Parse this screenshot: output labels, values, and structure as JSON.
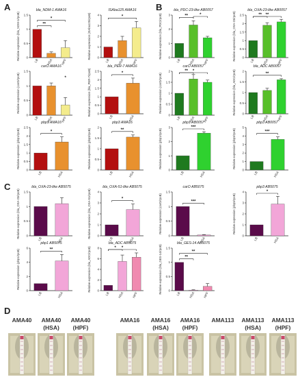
{
  "panels": [
    {
      "letter": "A"
    },
    {
      "letter": "B"
    },
    {
      "letter": "C"
    },
    {
      "letter": "D"
    }
  ],
  "colors": {
    "A": [
      "#b30f0f",
      "#e8912e",
      "#f4ec8c"
    ],
    "A2": [
      "#b30f0f",
      "#e8912e"
    ],
    "B": [
      "#1f7a1f",
      "#58bf2a",
      "#2fd12f"
    ],
    "B2": [
      "#1f7a1f",
      "#2fd12f"
    ],
    "C": [
      "#5a0b4a",
      "#f2a6d8",
      "#f08ab0"
    ],
    "C2": [
      "#5a0b4a",
      "#f2a6d8"
    ]
  },
  "chart_data": [
    {
      "type": "bar",
      "panel": "A",
      "title": "bla_NDM-1 AMA16",
      "categories": [
        "LB",
        "HSA",
        "HPF"
      ],
      "values": [
        1.0,
        0.15,
        0.35
      ],
      "errors": [
        0.0,
        0.05,
        0.25
      ],
      "ylim": [
        0,
        1.5
      ],
      "yticks": [
        "0",
        "0.5",
        "1",
        "1.5"
      ],
      "ylabel": "Relative expression (bla_NDM-1/rpoB)",
      "sig": [
        {
          "from": 0,
          "to": 1,
          "text": "**"
        },
        {
          "from": 0,
          "to": 2,
          "text": "*"
        }
      ]
    },
    {
      "type": "bar",
      "panel": "A",
      "title": "ISAba125 AMA16",
      "categories": [
        "LB",
        "HSA",
        "HPF"
      ],
      "values": [
        1.0,
        1.6,
        2.8
      ],
      "errors": [
        0.0,
        0.4,
        0.6
      ],
      "ylim": [
        0,
        4
      ],
      "yticks": [
        "0",
        "1",
        "2",
        "3",
        "4"
      ],
      "ylabel": "Relative expression (ISAba125/rpoB)",
      "sig": [
        {
          "from": 0,
          "to": 2,
          "text": "*"
        }
      ]
    },
    {
      "type": "bar",
      "panel": "A",
      "title": "carO AMA16",
      "categories": [
        "LB",
        "HSA",
        "HPF"
      ],
      "values": [
        1.0,
        1.0,
        0.35
      ],
      "errors": [
        0.0,
        0.1,
        0.25
      ],
      "ylim": [
        0,
        1.5
      ],
      "yticks": [
        "0",
        "0.5",
        "1",
        "1.5"
      ],
      "ylabel": "Relative expression (carO/rpoB)",
      "sig": [
        {
          "from": 2,
          "to": 2,
          "text": "*"
        }
      ]
    },
    {
      "type": "bar",
      "panel": "A",
      "title": "bla_PER-7 AMA16",
      "categories": [
        "LB",
        "HSA"
      ],
      "values": [
        1.0,
        1.8
      ],
      "errors": [
        0.0,
        0.3
      ],
      "ylim": [
        0,
        2.5
      ],
      "yticks": [
        "0",
        "0.5",
        "1",
        "1.5",
        "2",
        "2.5"
      ],
      "ylabel": "Relative expression (bla_PER-7/rpoB)",
      "sig": [
        {
          "from": 0,
          "to": 1,
          "text": "*"
        }
      ]
    },
    {
      "type": "bar",
      "panel": "A",
      "title": "pbp1 AMA16",
      "categories": [
        "LB",
        "HSA"
      ],
      "values": [
        1.0,
        1.65
      ],
      "errors": [
        0.0,
        0.3
      ],
      "ylim": [
        0,
        2.5
      ],
      "yticks": [
        "0",
        "0.5",
        "1",
        "1.5",
        "2",
        "2.5"
      ],
      "ylabel": "Relative expression (pbp1/rpoB)",
      "sig": [
        {
          "from": 0,
          "to": 1,
          "text": "*"
        }
      ]
    },
    {
      "type": "bar",
      "panel": "A",
      "title": "pbp3 AMA16",
      "categories": [
        "LB",
        "HSA"
      ],
      "values": [
        1.0,
        1.55
      ],
      "errors": [
        0.0,
        0.1
      ],
      "ylim": [
        0,
        2
      ],
      "yticks": [
        "0",
        "0.5",
        "1",
        "1.5",
        "2"
      ],
      "ylabel": "Relative expression (pbp3/rpoB)",
      "sig": [
        {
          "from": 0,
          "to": 1,
          "text": "**"
        }
      ]
    },
    {
      "type": "bar",
      "panel": "B",
      "title": "bla_PDC-23-like AB0057",
      "categories": [
        "LB",
        "HSA",
        "HPF"
      ],
      "values": [
        1.0,
        2.3,
        1.4
      ],
      "errors": [
        0.0,
        0.3,
        0.1
      ],
      "ylim": [
        0,
        3
      ],
      "yticks": [
        "0",
        "1",
        "2",
        "3"
      ],
      "ylabel": "Relative expression (bla_PDC/rpoB)",
      "sig": [
        {
          "from": 0,
          "to": 1,
          "text": "**"
        },
        {
          "from": 1,
          "to": 2,
          "text": "*"
        }
      ]
    },
    {
      "type": "bar",
      "panel": "B",
      "title": "bla_OXA-23-like AB0057",
      "categories": [
        "LB",
        "HSA",
        "HPF"
      ],
      "values": [
        1.0,
        1.9,
        2.1
      ],
      "errors": [
        0.0,
        0.15,
        0.15
      ],
      "ylim": [
        0,
        2.5
      ],
      "yticks": [
        "0",
        "0.5",
        "1",
        "1.5",
        "2",
        "2.5"
      ],
      "ylabel": "Relative expression (bla_OXA-23/rpoB)",
      "sig": [
        {
          "from": 0,
          "to": 1,
          "text": "**"
        },
        {
          "from": 0,
          "to": 2,
          "text": "**"
        }
      ]
    },
    {
      "type": "bar",
      "panel": "B",
      "title": "carO AB0057",
      "categories": [
        "LB",
        "HSA",
        "HPF"
      ],
      "values": [
        1.0,
        1.65,
        1.5
      ],
      "errors": [
        0.0,
        0.2,
        0.1
      ],
      "ylim": [
        0,
        2
      ],
      "yticks": [
        "0",
        "0.5",
        "1",
        "1.5",
        "2"
      ],
      "ylabel": "Relative expression (carO/rpoB)",
      "sig": [
        {
          "from": 0,
          "to": 1,
          "text": "**"
        },
        {
          "from": 0,
          "to": 2,
          "text": "*"
        }
      ]
    },
    {
      "type": "bar",
      "panel": "B",
      "title": "bla_ADC AB0057",
      "categories": [
        "LB",
        "HSA",
        "HPF"
      ],
      "values": [
        1.0,
        1.1,
        1.6
      ],
      "errors": [
        0.0,
        0.1,
        0.05
      ],
      "ylim": [
        0,
        2
      ],
      "yticks": [
        "0",
        "0.5",
        "1",
        "1.5",
        "2"
      ],
      "ylabel": "Relative expression (bla_ADC/rpoB)",
      "sig": [
        {
          "from": 0,
          "to": 2,
          "text": "**"
        }
      ]
    },
    {
      "type": "bar",
      "panel": "B",
      "title": "pbp1 AB0057",
      "categories": [
        "LB",
        "HSA"
      ],
      "values": [
        1.0,
        2.6
      ],
      "errors": [
        0.0,
        0.1
      ],
      "ylim": [
        0,
        3
      ],
      "yticks": [
        "0",
        "1",
        "2",
        "3"
      ],
      "ylabel": "Relative expression (pbp1/rpoB)",
      "sig": [
        {
          "from": 0,
          "to": 1,
          "text": "***"
        }
      ]
    },
    {
      "type": "bar",
      "panel": "B",
      "title": "pbp3 AB0057",
      "categories": [
        "LB",
        "HSA"
      ],
      "values": [
        1.0,
        3.6
      ],
      "errors": [
        0.0,
        0.3
      ],
      "ylim": [
        0,
        5
      ],
      "yticks": [
        "0",
        "1",
        "2",
        "3",
        "4",
        "5"
      ],
      "ylabel": "Relative expression (pbp3/rpoB)",
      "sig": [
        {
          "from": 0,
          "to": 1,
          "text": "***"
        }
      ]
    },
    {
      "type": "bar",
      "panel": "C",
      "title": "bla_OXA-23-like AB5075",
      "categories": [
        "LB",
        "HSA"
      ],
      "values": [
        1.0,
        1.1
      ],
      "errors": [
        0.0,
        0.2
      ],
      "ylim": [
        0,
        1.5
      ],
      "yticks": [
        "0",
        "0.5",
        "1",
        "1.5"
      ],
      "ylabel": "Relative expression (bla_OXA-23/rpoB)",
      "sig": []
    },
    {
      "type": "bar",
      "panel": "C",
      "title": "bla_OXA-51-like AB5075",
      "categories": [
        "LB",
        "HSA"
      ],
      "values": [
        1.0,
        2.4
      ],
      "errors": [
        0.0,
        0.5
      ],
      "ylim": [
        0,
        4
      ],
      "yticks": [
        "0",
        "1",
        "2",
        "3",
        "4"
      ],
      "ylabel": "Relative expression (bla_OXA-51/rpoB)",
      "sig": [
        {
          "from": 0,
          "to": 1,
          "text": "*"
        }
      ]
    },
    {
      "type": "bar",
      "panel": "C",
      "title": "carO AB5075",
      "categories": [
        "LB",
        "HSA"
      ],
      "values": [
        1.0,
        0.03
      ],
      "errors": [
        0.0,
        0.01
      ],
      "ylim": [
        0,
        1.5
      ],
      "yticks": [
        "0",
        "0.5",
        "1",
        "1.5"
      ],
      "ylabel": "Relative expression (carO/rpoB)",
      "sig": [
        {
          "from": 0,
          "to": 1,
          "text": "***"
        }
      ]
    },
    {
      "type": "bar",
      "panel": "C",
      "title": "pbp3 AB5075",
      "categories": [
        "LB",
        "HSA"
      ],
      "values": [
        1.0,
        2.9
      ],
      "errors": [
        0.0,
        0.7
      ],
      "ylim": [
        0,
        4
      ],
      "yticks": [
        "0",
        "1",
        "2",
        "3",
        "4"
      ],
      "ylabel": "Relative expression (pbp3/rpoB)",
      "sig": [
        {
          "from": 0,
          "to": 1,
          "text": "*"
        }
      ]
    },
    {
      "type": "bar",
      "panel": "C",
      "title": "pbp1 AB5075",
      "categories": [
        "LB",
        "HSA"
      ],
      "values": [
        1.0,
        4.2
      ],
      "errors": [
        0.0,
        0.9
      ],
      "ylim": [
        0,
        6
      ],
      "yticks": [
        "0",
        "2",
        "4",
        "6"
      ],
      "ylabel": "Relative expression (pbp1/rpoB)",
      "sig": [
        {
          "from": 0,
          "to": 1,
          "text": "**"
        }
      ]
    },
    {
      "type": "bar",
      "panel": "C",
      "title": "bla_ADC AB5075",
      "categories": [
        "LB",
        "HSA",
        "HPF"
      ],
      "values": [
        1.0,
        5.5,
        6.3
      ],
      "errors": [
        0.0,
        1.2,
        0.8
      ],
      "ylim": [
        0,
        8
      ],
      "yticks": [
        "0",
        "2",
        "4",
        "6",
        "8"
      ],
      "ylabel": "Relative expression (bla_ADC/rpoB)",
      "sig": [
        {
          "from": 0,
          "to": 1,
          "text": "*"
        },
        {
          "from": 0,
          "to": 2,
          "text": "*"
        }
      ]
    },
    {
      "type": "bar",
      "panel": "C",
      "title": "bla_GES-14 AB5075",
      "categories": [
        "LB",
        "HSA",
        "HPF"
      ],
      "values": [
        1.0,
        0.02,
        0.15
      ],
      "errors": [
        0.0,
        0.01,
        0.1
      ],
      "ylim": [
        0,
        1.5
      ],
      "yticks": [
        "0",
        "0.5",
        "1",
        "1.5"
      ],
      "ylabel": "Relative expression (bla_GES-14/rpoB)",
      "sig": [
        {
          "from": 0,
          "to": 1,
          "text": "**"
        },
        {
          "from": 0,
          "to": 2,
          "text": "**"
        }
      ]
    }
  ],
  "strips": [
    {
      "l1": "AMA40",
      "l2": ""
    },
    {
      "l1": "AMA40",
      "l2": "(HSA)"
    },
    {
      "l1": "AMA40",
      "l2": "(HPF)"
    },
    {
      "l1": "AMA16",
      "l2": ""
    },
    {
      "l1": "AMA16",
      "l2": "(HSA)"
    },
    {
      "l1": "AMA16",
      "l2": "(HPF)"
    },
    {
      "l1": "AMA113",
      "l2": ""
    },
    {
      "l1": "AMA113",
      "l2": "(HSA)"
    },
    {
      "l1": "AMA113",
      "l2": "(HPF)"
    }
  ]
}
